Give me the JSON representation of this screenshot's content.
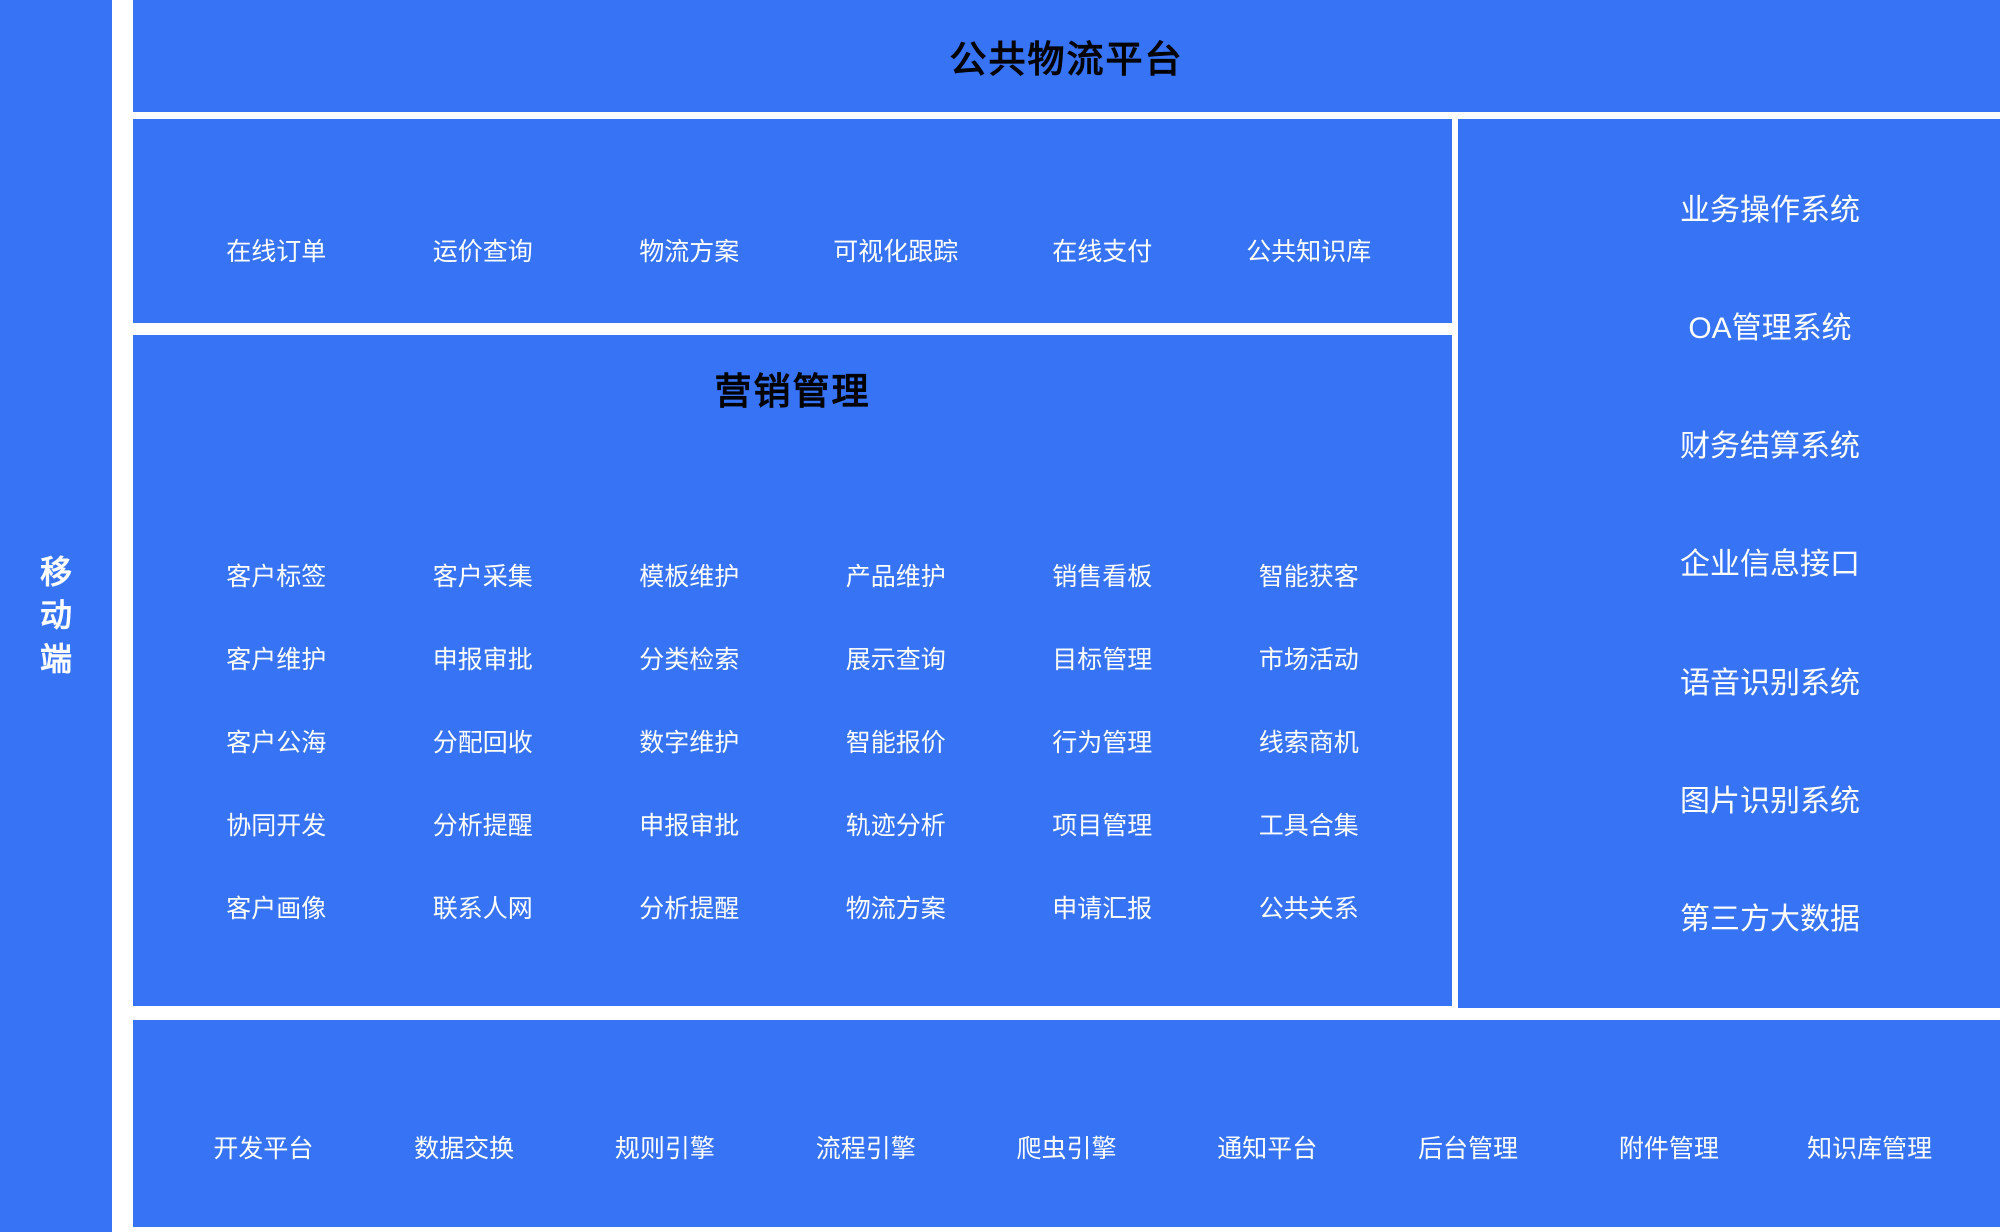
{
  "colors": {
    "block_blue": "#3773F5",
    "title_text": "#000000",
    "item_text": "#FFFFFF"
  },
  "left_sidebar": {
    "label": "移动端"
  },
  "top_bar": {
    "title": "公共物流平台"
  },
  "logistics_menu": {
    "items": [
      "在线订单",
      "运价查询",
      "物流方案",
      "可视化跟踪",
      "在线支付",
      "公共知识库"
    ]
  },
  "marketing_panel": {
    "title": "营销管理",
    "items": [
      "客户标签",
      "客户采集",
      "模板维护",
      "产品维护",
      "销售看板",
      "智能获客",
      "客户维护",
      "申报审批",
      "分类检索",
      "展示查询",
      "目标管理",
      "市场活动",
      "客户公海",
      "分配回收",
      "数字维护",
      "智能报价",
      "行为管理",
      "线索商机",
      "协同开发",
      "分析提醒",
      "申报审批",
      "轨迹分析",
      "项目管理",
      "工具合集",
      "客户画像",
      "联系人网",
      "分析提醒",
      "物流方案",
      "申请汇报",
      "公共关系"
    ]
  },
  "external_systems": {
    "items": [
      "业务操作系统",
      "OA管理系统",
      "财务结算系统",
      "企业信息接口",
      "语音识别系统",
      "图片识别系统",
      "第三方大数据"
    ]
  },
  "platform_services": {
    "items": [
      "开发平台",
      "数据交换",
      "规则引擎",
      "流程引擎",
      "爬虫引擎",
      "通知平台",
      "后台管理",
      "附件管理",
      "知识库管理"
    ]
  }
}
